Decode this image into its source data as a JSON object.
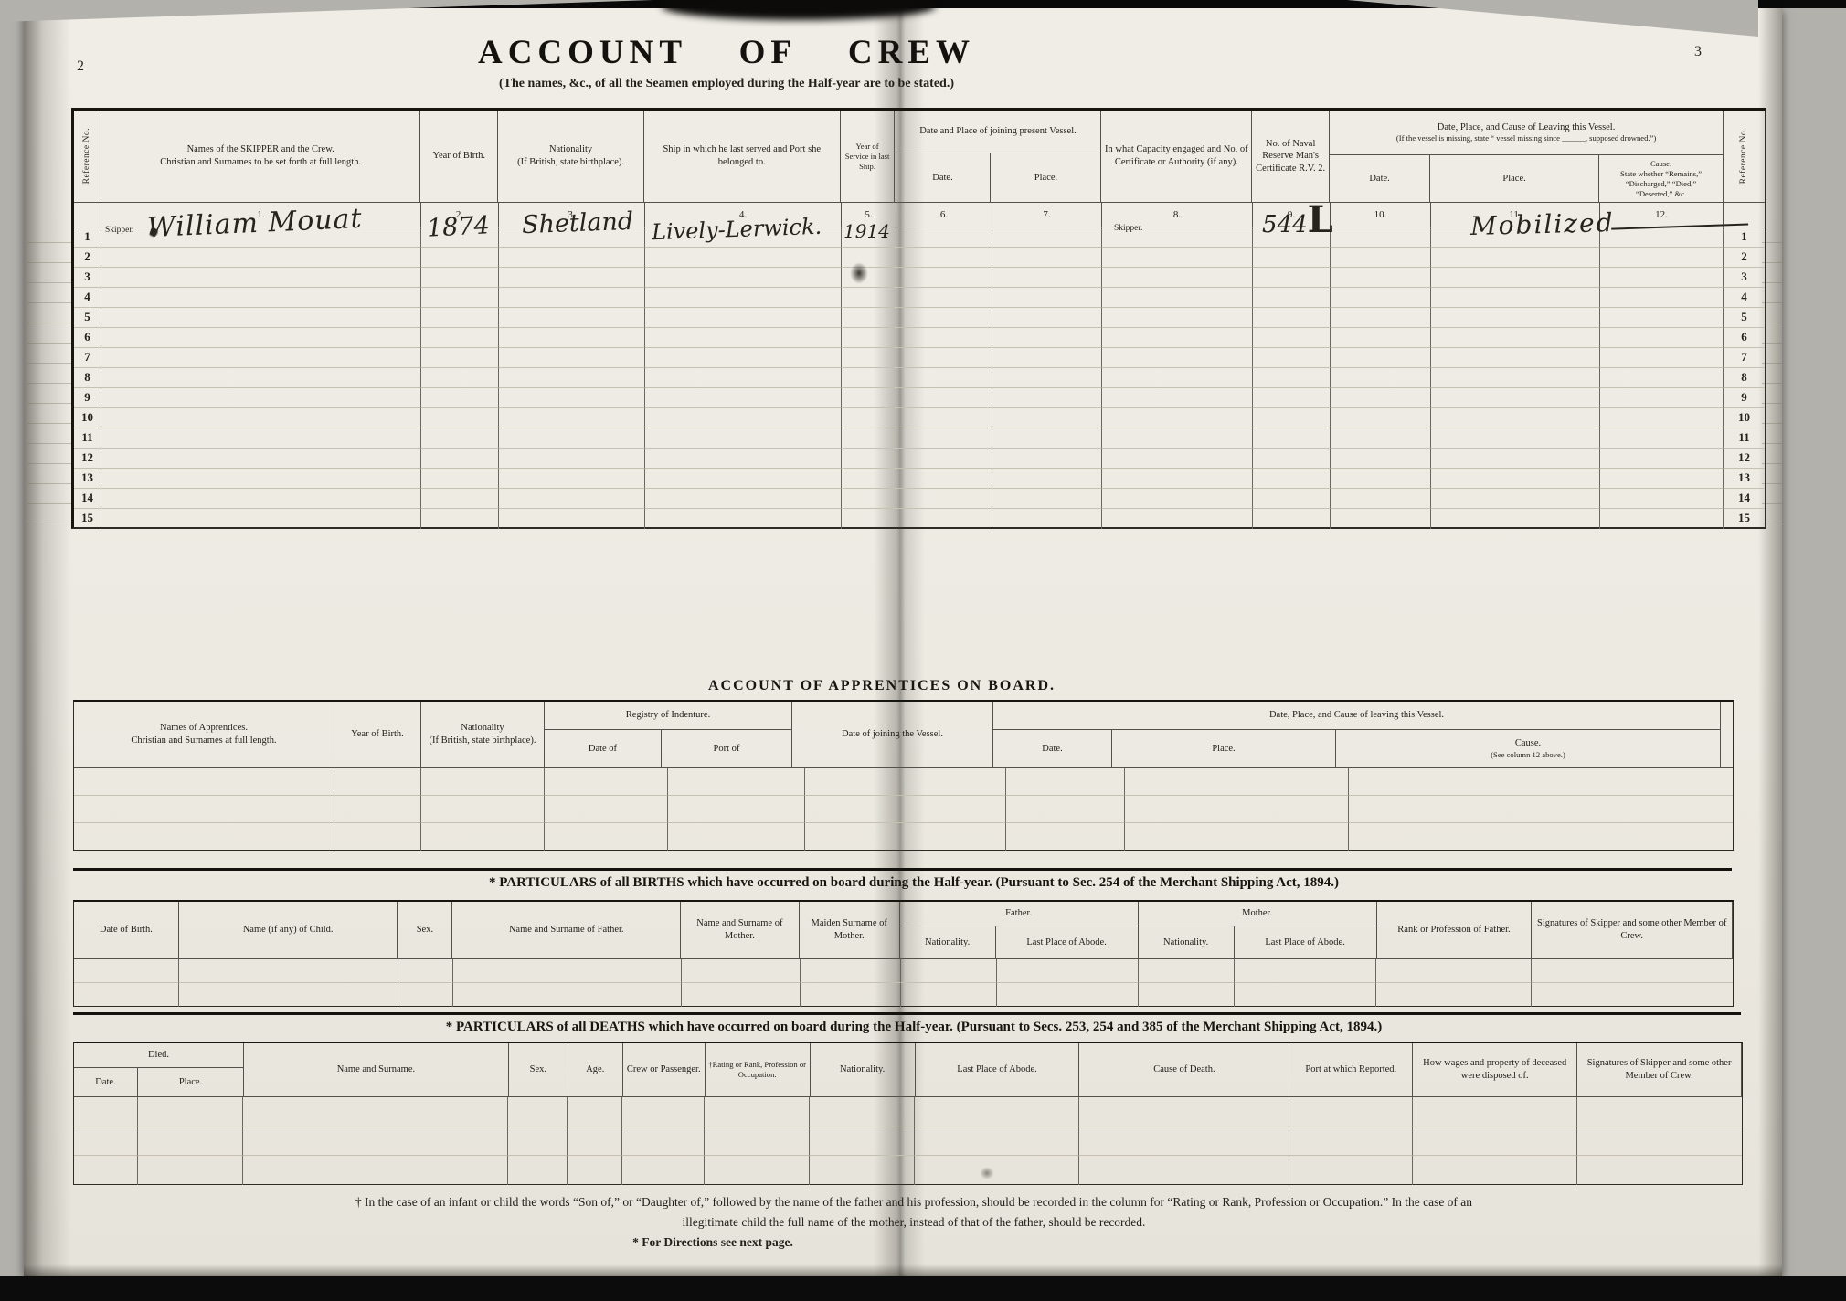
{
  "colors": {
    "page": "#edeae2",
    "surface": "#b3b1ac",
    "ink": "#1d1b16"
  },
  "page": {
    "left_number": "2",
    "right_number": "3"
  },
  "title": {
    "main": "ACCOUNT OF CREW",
    "subtitle": "(The names, &c., of all the Seamen employed during the Half-year are to be stated.)"
  },
  "crew_table": {
    "headers": {
      "reference_left": "Reference No.",
      "names_line1": "Names of the SKIPPER and the Crew.",
      "names_line2": "Christian and Surnames to be set forth at full length.",
      "year_of_birth": "Year of Birth.",
      "nationality_line1": "Nationality",
      "nationality_line2": "(If British, state birthplace).",
      "ship": "Ship in which he last served and Port she belonged to.",
      "year_of_service": "Year of Service in last Ship.",
      "joining_group": "Date and Place of joining present Vessel.",
      "joining_date": "Date.",
      "joining_place": "Place.",
      "capacity": "In what Capacity engaged and No. of Certificate or Authority (if any).",
      "naval_reserve": "No. of Naval Reserve Man's Certificate R.V. 2.",
      "leaving_group_line1": "Date, Place, and Cause of Leaving this Vessel.",
      "leaving_group_line2": "(If the vessel is missing, state “ vessel missing since ______, supposed drowned.”)",
      "leaving_date": "Date.",
      "leaving_place": "Place.",
      "leaving_cause_line1": "Cause.",
      "leaving_cause_line2": "State whether “Remains,”",
      "leaving_cause_line3": "“Discharged,” “Died,”",
      "leaving_cause_line4": "“Deserted,” &c.",
      "reference_right": "Reference No."
    },
    "col_numbers": [
      "1.",
      "2.",
      "3.",
      "4.",
      "5.",
      "6.",
      "7.",
      "8.",
      "9.",
      "10.",
      "11.",
      "12."
    ],
    "ref_numbers_left": [
      "1",
      "2",
      "3",
      "4",
      "5",
      "6",
      "7",
      "8",
      "9",
      "10",
      "11",
      "12",
      "13",
      "14",
      "15"
    ],
    "ref_numbers_right": [
      "1",
      "2",
      "3",
      "4",
      "5",
      "6",
      "7",
      "8",
      "9",
      "10",
      "11",
      "12",
      "13",
      "14",
      "15"
    ],
    "entry": {
      "row_label": "Skipper.",
      "name": "William Mouat",
      "year_of_birth": "1874",
      "nationality": "Shetland",
      "ship": "Lively-Lerwick.",
      "year_of_service": "1914",
      "capacity": "Skipper.",
      "naval_certificate": "544",
      "naval_certificate_suffix": "L",
      "leaving_place": "Mobilized"
    }
  },
  "apprentices": {
    "title": "ACCOUNT OF APPRENTICES ON BOARD.",
    "headers": {
      "names_line1": "Names of Apprentices.",
      "names_line2": "Christian and Surnames at full length.",
      "year_of_birth": "Year of Birth.",
      "nationality_line1": "Nationality",
      "nationality_line2": "(If British, state birthplace).",
      "registry_group": "Registry of Indenture.",
      "registry_date": "Date of",
      "registry_port": "Port of",
      "joining": "Date of joining the Vessel.",
      "leaving_group": "Date, Place, and Cause of leaving this Vessel.",
      "leaving_date": "Date.",
      "leaving_place": "Place.",
      "leaving_cause_line1": "Cause.",
      "leaving_cause_line2": "(See column 12 above.)"
    }
  },
  "births": {
    "title": "* PARTICULARS of all BIRTHS which have occurred on board during the Half-year.  (Pursuant to Sec. 254 of the Merchant Shipping Act, 1894.)",
    "headers": {
      "date_of_birth": "Date of Birth.",
      "child_name": "Name (if any) of Child.",
      "sex": "Sex.",
      "father_name": "Name and Surname of Father.",
      "mother_name": "Name and Surname of Mother.",
      "maiden_surname": "Maiden Surname of Mother.",
      "father_group": "Father.",
      "father_nationality": "Nationality.",
      "father_abode": "Last Place of Abode.",
      "mother_group": "Mother.",
      "mother_nationality": "Nationality.",
      "mother_abode": "Last Place of Abode.",
      "rank": "Rank or Profession of Father.",
      "signatures": "Signatures of Skipper and some other Member of Crew."
    }
  },
  "deaths": {
    "title": "* PARTICULARS of all DEATHS which have occurred on board during the Half-year.  (Pursuant to Secs. 253, 254 and 385 of the Merchant Shipping Act, 1894.)",
    "headers": {
      "died_group": "Died.",
      "died_date": "Date.",
      "died_place": "Place.",
      "name": "Name and Surname.",
      "sex": "Sex.",
      "age": "Age.",
      "crew_or_passenger": "Crew or Passenger.",
      "rating": "†Rating or Rank, Profession or Occupation.",
      "nationality": "Nationality.",
      "abode": "Last Place of Abode.",
      "cause": "Cause of Death.",
      "port": "Port at which Reported.",
      "wages": "How wages and property of deceased were disposed of.",
      "signatures": "Signatures of Skipper and some other Member of Crew."
    }
  },
  "footnotes": {
    "line1": "† In the case of an infant or child the words “Son of,” or “Daughter of,” followed by the name of the father and his profession, should be recorded in the column for “Rating or Rank, Profession or Occupation.”  In the case of an",
    "line2": "illegitimate child the full name of the mother, instead of that of the father, should be recorded.",
    "line3": "* For Directions see next page."
  }
}
